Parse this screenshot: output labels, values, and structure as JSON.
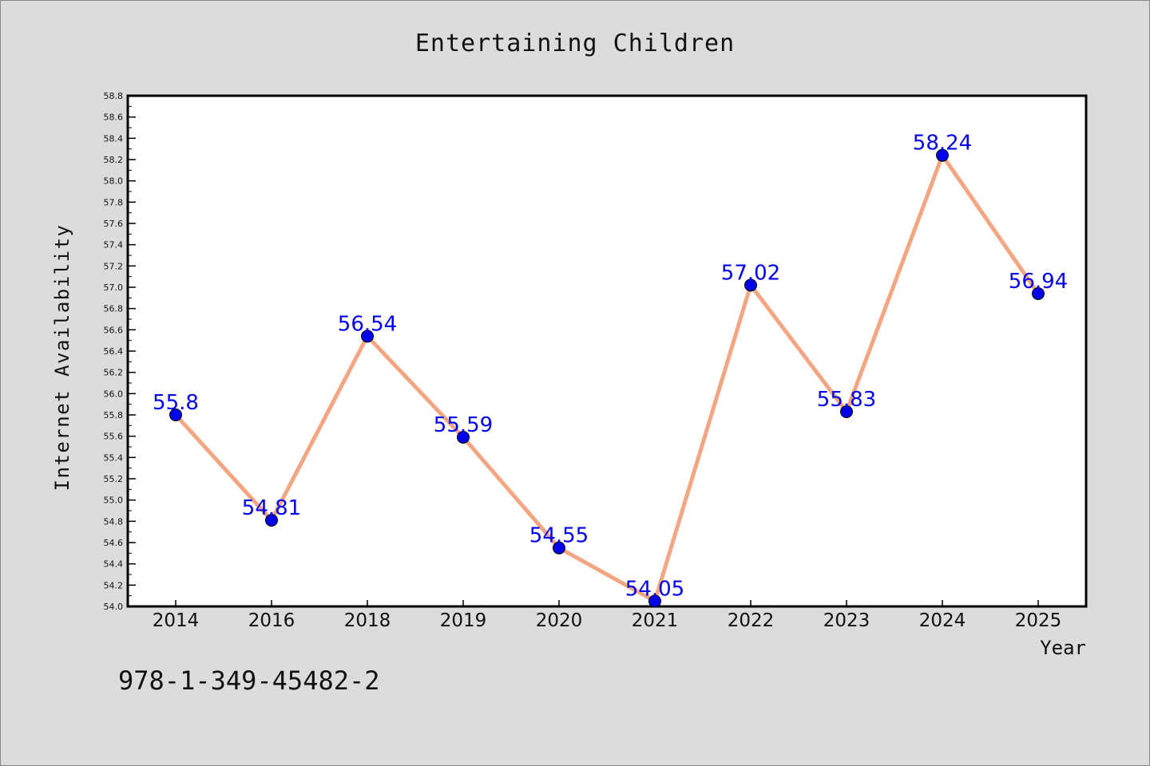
{
  "chart_data": {
    "type": "line",
    "title": "Entertaining Children",
    "xlabel": "Year",
    "ylabel": "Internet Availability",
    "categories": [
      "2014",
      "2016",
      "2018",
      "2019",
      "2020",
      "2021",
      "2022",
      "2023",
      "2024",
      "2025"
    ],
    "series": [
      {
        "values": [
          55.8,
          54.81,
          56.54,
          55.59,
          54.55,
          54.05,
          57.02,
          55.83,
          58.24,
          56.94
        ],
        "labels": [
          "55.8",
          "54.81",
          "56.54",
          "55.59",
          "54.55",
          "54.05",
          "57.02",
          "55.83",
          "58.24",
          "56.94"
        ]
      }
    ],
    "ylim": [
      54.0,
      58.8
    ],
    "y_tick_step": 0.2,
    "y_ticks": [
      "54.0",
      "54.2",
      "54.4",
      "54.6",
      "54.8",
      "55.0",
      "55.2",
      "55.4",
      "55.6",
      "55.8",
      "56.0",
      "56.2",
      "56.4",
      "56.6",
      "56.8",
      "57.0",
      "57.2",
      "57.4",
      "57.6",
      "57.8",
      "58.0",
      "58.2",
      "58.4",
      "58.6",
      "58.8"
    ],
    "grid": false,
    "line_color": "#f4a582",
    "marker_color": "#0000ee",
    "label_color": "#0000ee"
  },
  "footer_code": "978-1-349-45482-2"
}
